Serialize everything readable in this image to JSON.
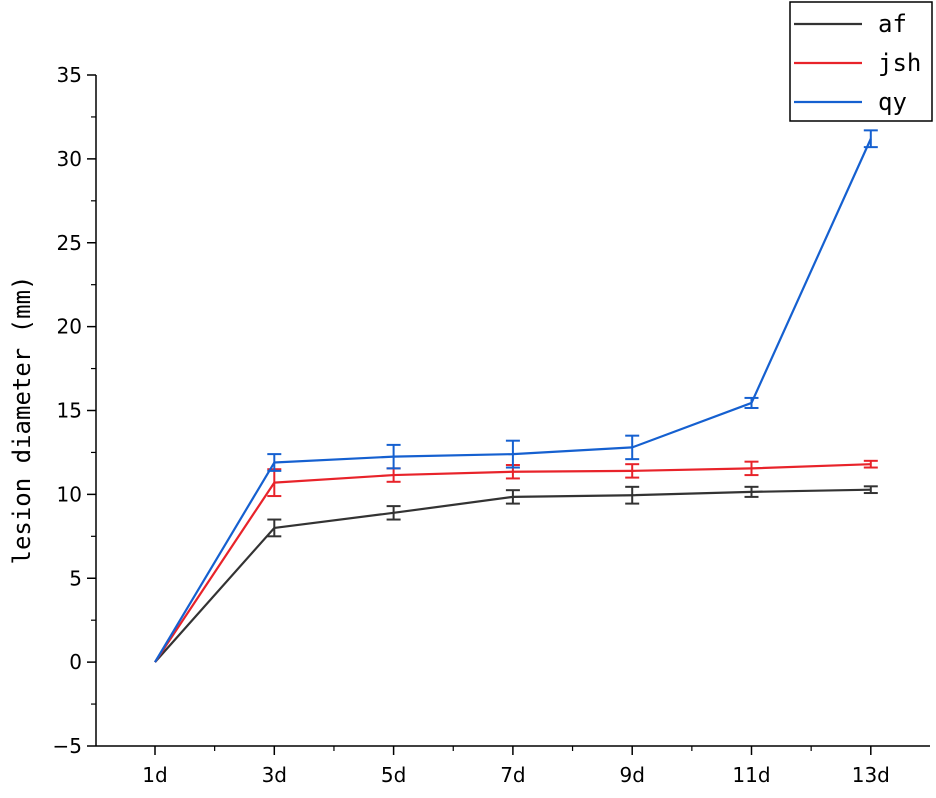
{
  "chart_data": {
    "type": "line",
    "title": "",
    "xlabel": "",
    "ylabel": "lesion diameter (mm)",
    "categories": [
      "1d",
      "3d",
      "5d",
      "7d",
      "9d",
      "11d",
      "13d"
    ],
    "ylim": [
      -5,
      35
    ],
    "yticks": [
      -5,
      0,
      5,
      10,
      15,
      20,
      25,
      30,
      35
    ],
    "ytick_labels": [
      "−5",
      "0",
      "5",
      "10",
      "15",
      "20",
      "25",
      "30",
      "35"
    ],
    "grid": false,
    "legend_position": "top-right",
    "series": [
      {
        "name": "af",
        "color": "#333333",
        "values": [
          0,
          8.0,
          8.9,
          9.85,
          9.95,
          10.15,
          10.28
        ],
        "errors": [
          0,
          0.5,
          0.4,
          0.4,
          0.5,
          0.3,
          0.2
        ]
      },
      {
        "name": "jsh",
        "color": "#e8232a",
        "values": [
          0,
          10.7,
          11.15,
          11.35,
          11.4,
          11.55,
          11.8
        ],
        "errors": [
          0,
          0.8,
          0.4,
          0.4,
          0.4,
          0.4,
          0.2
        ]
      },
      {
        "name": "qy",
        "color": "#1560d0",
        "values": [
          0,
          11.9,
          12.25,
          12.4,
          12.8,
          15.45,
          31.2
        ],
        "errors": [
          0,
          0.5,
          0.7,
          0.8,
          0.7,
          0.3,
          0.5
        ]
      }
    ]
  }
}
